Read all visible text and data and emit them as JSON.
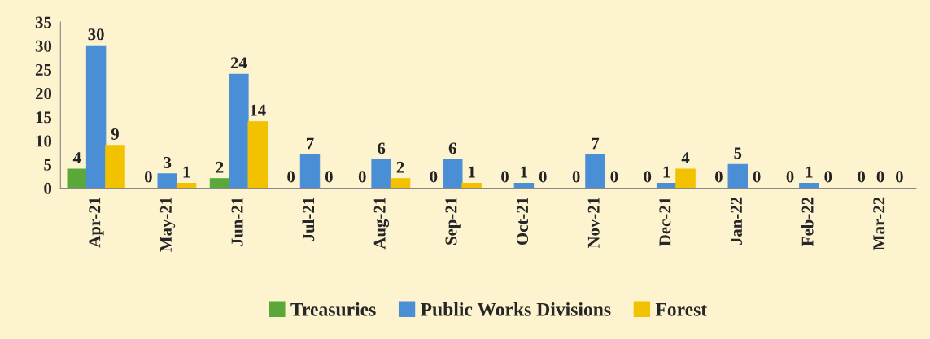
{
  "chart_data": {
    "type": "bar",
    "categories": [
      "Apr-21",
      "May-21",
      "Jun-21",
      "Jul-21",
      "Aug-21",
      "Sep-21",
      "Oct-21",
      "Nov-21",
      "Dec-21",
      "Jan-22",
      "Feb-22",
      "Mar-22"
    ],
    "series": [
      {
        "name": "Treasuries",
        "color": "#5aa83a",
        "values": [
          4,
          0,
          2,
          0,
          0,
          0,
          0,
          0,
          0,
          0,
          0,
          0
        ]
      },
      {
        "name": "Public Works Divisions",
        "color": "#4a8fd6",
        "values": [
          30,
          3,
          24,
          7,
          6,
          6,
          1,
          7,
          1,
          5,
          1,
          0
        ]
      },
      {
        "name": "Forest",
        "color": "#f2c200",
        "values": [
          9,
          1,
          14,
          0,
          2,
          1,
          0,
          0,
          4,
          0,
          0,
          0
        ]
      }
    ],
    "ylim": [
      0,
      35
    ],
    "yticks": [
      0,
      5,
      10,
      15,
      20,
      25,
      30,
      35
    ],
    "grid": false,
    "legend": "bottom",
    "data_labels": true
  }
}
